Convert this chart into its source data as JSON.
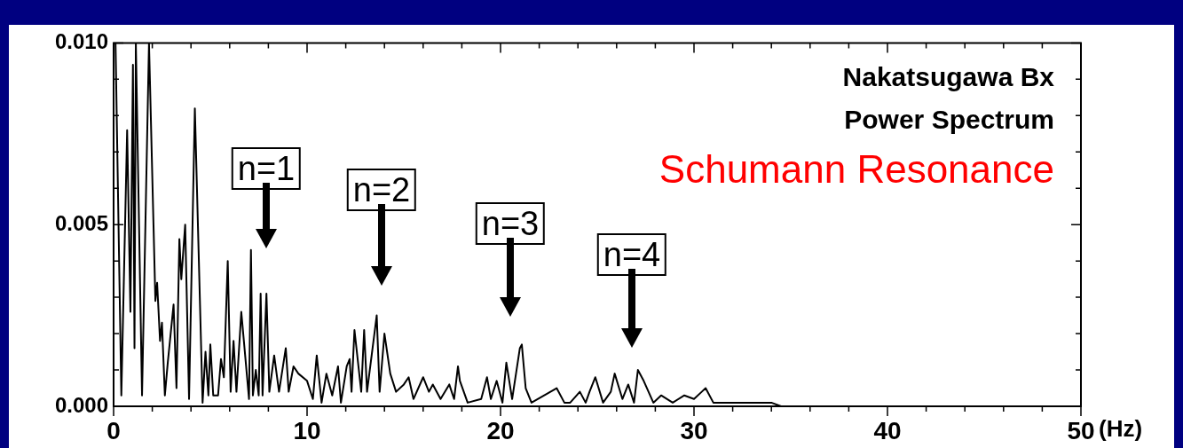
{
  "chart_data": {
    "type": "line",
    "xlabel": "(Hz)",
    "x": [
      0,
      0.1,
      0.4,
      0.7,
      0.87,
      1.0,
      1.08,
      1.15,
      1.47,
      1.83,
      2.16,
      2.25,
      2.4,
      2.5,
      2.65,
      2.8,
      3.1,
      3.25,
      3.4,
      3.5,
      3.7,
      3.9,
      4.2,
      4.6,
      4.75,
      4.9,
      5.0,
      5.15,
      5.4,
      5.55,
      5.7,
      5.9,
      6.05,
      6.2,
      6.35,
      6.6,
      6.8,
      7.0,
      7.1,
      7.2,
      7.35,
      7.5,
      7.6,
      7.7,
      7.9,
      8.05,
      8.3,
      8.55,
      8.9,
      9.05,
      9.3,
      9.55,
      10.0,
      10.3,
      10.5,
      10.75,
      11.0,
      11.3,
      11.6,
      11.75,
      12.05,
      12.2,
      12.3,
      12.45,
      12.8,
      12.95,
      13.1,
      13.6,
      13.75,
      14.0,
      14.3,
      14.6,
      15.0,
      15.25,
      15.5,
      16.0,
      16.3,
      16.5,
      16.9,
      17.35,
      17.6,
      17.8,
      17.9,
      18.3,
      19.0,
      19.3,
      19.5,
      19.8,
      20.1,
      20.3,
      20.6,
      21.0,
      21.1,
      21.3,
      21.6,
      22.9,
      23.3,
      23.6,
      24.1,
      24.4,
      24.6,
      24.9,
      25.3,
      25.7,
      25.9,
      26.3,
      26.6,
      26.9,
      27.1,
      27.4,
      27.9,
      28.3,
      28.9,
      29.5,
      30.0,
      30.4,
      30.6,
      31.0,
      31.5,
      32.0,
      32.5,
      33.0,
      33.5,
      34.0,
      34.5,
      35.0,
      35.5,
      36.0,
      36.5,
      37.0,
      38.0,
      40.0,
      42.0,
      44.0,
      46.0,
      48.0,
      50.0
    ],
    "values": [
      0.01,
      0.01,
      0.0003,
      0.0076,
      0.0026,
      0.0094,
      0.0016,
      0.01,
      0.0003,
      0.01,
      0.0029,
      0.0034,
      0.0018,
      0.0023,
      0.0003,
      0.0012,
      0.0028,
      0.0005,
      0.0046,
      0.0035,
      0.005,
      0.0002,
      0.0082,
      0.0001,
      0.0015,
      0.0003,
      0.0017,
      0.0003,
      0.0003,
      0.0013,
      0.0008,
      0.004,
      0.0004,
      0.0018,
      0.0004,
      0.0026,
      0.0014,
      0.0002,
      0.0043,
      0.0003,
      0.001,
      0.0003,
      0.0031,
      0.0003,
      0.0031,
      0.0004,
      0.0014,
      0.0004,
      0.0016,
      0.0004,
      0.0011,
      0.0009,
      0.0007,
      0.0002,
      0.0014,
      0.0001,
      0.0009,
      0.0003,
      0.0011,
      0.0001,
      0.0011,
      0.0013,
      0.0004,
      0.0021,
      0.0004,
      0.0021,
      0.0004,
      0.0025,
      0.0004,
      0.002,
      0.0009,
      0.0004,
      0.0006,
      0.0008,
      0.0002,
      0.0008,
      0.0004,
      0.0006,
      0.0002,
      0.0006,
      0.0002,
      0.0011,
      0.0007,
      0.0001,
      0.0002,
      0.0008,
      0.0002,
      0.0007,
      0.0001,
      0.0012,
      0.0002,
      0.0016,
      0.0017,
      0.0005,
      0.0001,
      0.0005,
      0.0001,
      0.0001,
      0.0004,
      0.0001,
      0.0004,
      0.0008,
      0.0001,
      0.0004,
      0.0009,
      0.0002,
      0.0006,
      0.0001,
      0.001,
      0.0007,
      0.0001,
      0.0003,
      0.0001,
      0.0003,
      0.0002,
      0.0004,
      0.0005,
      0.0001,
      0.0001,
      0.0001,
      0.0001,
      0.0001,
      0.0001,
      0.0001,
      0,
      0,
      0,
      0,
      0,
      0,
      0,
      0,
      0,
      0,
      0,
      0,
      0
    ],
    "color": "#000000",
    "xlim": [
      0,
      50
    ],
    "ylim": [
      0,
      0.01
    ],
    "xticks": [
      0,
      {
        "value": 2,
        "label": null
      },
      {
        "value": 4,
        "label": null
      },
      {
        "value": 6,
        "label": null
      },
      {
        "value": 8,
        "label": null
      },
      10,
      {
        "value": 12,
        "label": null
      },
      {
        "value": 14,
        "label": null
      },
      {
        "value": 16,
        "label": null
      },
      {
        "value": 18,
        "label": null
      },
      20,
      {
        "value": 22,
        "label": null
      },
      {
        "value": 24,
        "label": null
      },
      {
        "value": 26,
        "label": null
      },
      {
        "value": 28,
        "label": null
      },
      30,
      {
        "value": 32,
        "label": null
      },
      {
        "value": 34,
        "label": null
      },
      {
        "value": 36,
        "label": null
      },
      {
        "value": 38,
        "label": null
      },
      40,
      {
        "value": 42,
        "label": null
      },
      {
        "value": 44,
        "label": null
      },
      {
        "value": 46,
        "label": null
      },
      {
        "value": 48,
        "label": null
      },
      50
    ],
    "yticks": [
      {
        "value": 0,
        "label": "0.000"
      },
      {
        "value": 0.001,
        "label": null
      },
      {
        "value": 0.002,
        "label": null
      },
      {
        "value": 0.003,
        "label": null
      },
      {
        "value": 0.004,
        "label": null
      },
      {
        "value": 0.005,
        "label": "0.005"
      },
      {
        "value": 0.006,
        "label": null
      },
      {
        "value": 0.007,
        "label": null
      },
      {
        "value": 0.008,
        "label": null
      },
      {
        "value": 0.009,
        "label": null
      },
      {
        "value": 0.01,
        "label": "0.010"
      }
    ],
    "marker": "none",
    "line_style": "solid",
    "grid": false,
    "legend": false,
    "annotations": [
      "Nakatsugawa Bx",
      "Power Spectrum",
      "Schumann Resonance",
      "n=1",
      "n=2",
      "n=3",
      "n=4"
    ]
  }
}
